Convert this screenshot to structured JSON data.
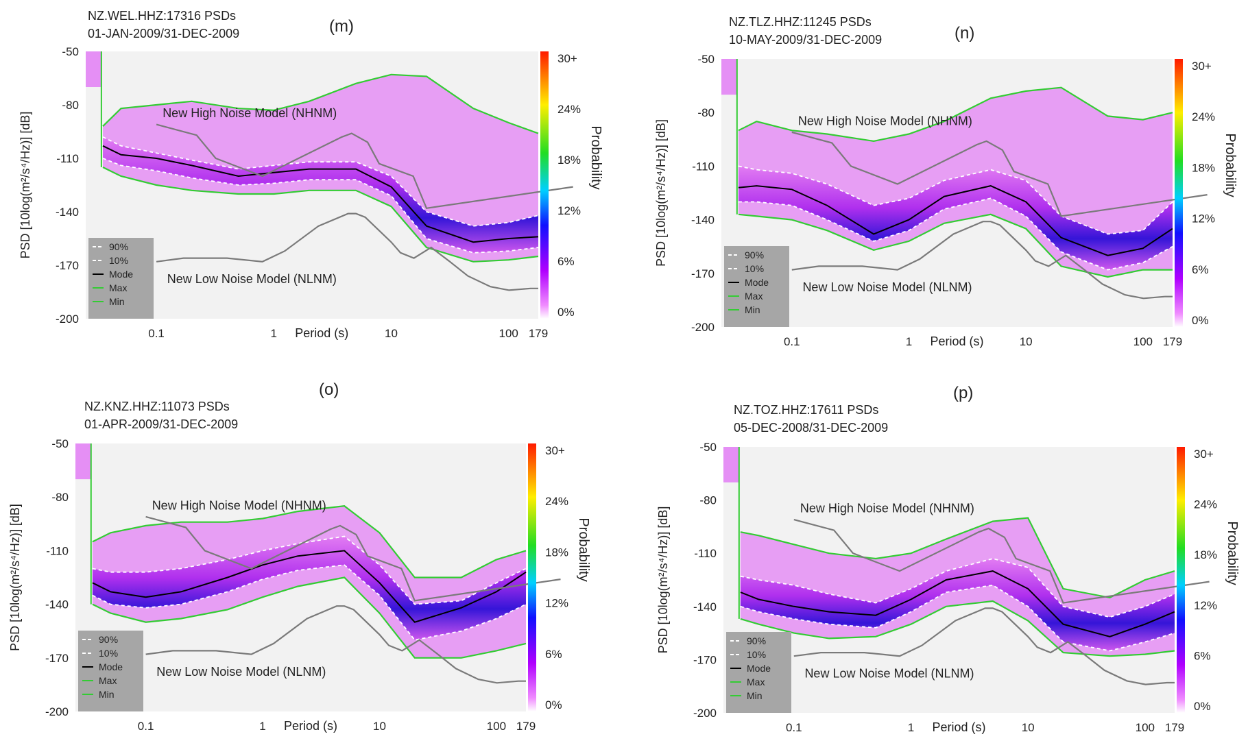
{
  "figure": {
    "colorbar": {
      "ticks": [
        "30+",
        "24%",
        "18%",
        "12%",
        "6%",
        "0%"
      ],
      "label": "Probability"
    },
    "axis": {
      "ylabel": "PSD [10log(m²/s⁴/Hz)] [dB]",
      "xlabel": "Period (s)"
    },
    "model_labels": {
      "nhnm": "New High Noise Model (NHNM)",
      "nlnm": "New Low Noise Model (NLNM)"
    },
    "legend": [
      "90%",
      "10%",
      "Mode",
      "Max",
      "Min"
    ]
  },
  "chart_data": [
    {
      "type": "heatmap",
      "letter": "(m)",
      "station": "NZ.WEL.HHZ:17316 PSDs",
      "dates": "01-JAN-2009/31-DEC-2009",
      "xscale": "log",
      "xlim": [
        0.025,
        179
      ],
      "ylim": [
        -200,
        -50
      ],
      "yticks": [
        -50,
        -80,
        -110,
        -140,
        -170,
        -200
      ],
      "xticks": [
        {
          "v": 0.1,
          "t": "0.1"
        },
        {
          "v": 1,
          "t": "1"
        },
        {
          "v": 10,
          "t": "10"
        },
        {
          "v": 100,
          "t": "100"
        },
        {
          "v": 179,
          "t": "179"
        }
      ],
      "series": {
        "max": {
          "x": [
            0.035,
            0.05,
            0.1,
            0.2,
            0.5,
            1,
            2,
            5,
            10,
            20,
            50,
            100,
            179
          ],
          "y": [
            -92,
            -82,
            -80,
            -78,
            -82,
            -83,
            -78,
            -68,
            -63,
            -64,
            -82,
            -90,
            -96
          ]
        },
        "p90": {
          "x": [
            0.035,
            0.05,
            0.1,
            0.2,
            0.5,
            1,
            2,
            5,
            10,
            20,
            50,
            100,
            179
          ],
          "y": [
            -98,
            -103,
            -107,
            -111,
            -116,
            -114,
            -112,
            -112,
            -120,
            -140,
            -148,
            -146,
            -142
          ]
        },
        "mode": {
          "x": [
            0.035,
            0.05,
            0.1,
            0.2,
            0.5,
            1,
            2,
            5,
            10,
            20,
            50,
            100,
            179
          ],
          "y": [
            -103,
            -108,
            -110,
            -114,
            -120,
            -118,
            -116,
            -116,
            -126,
            -148,
            -157,
            -155,
            -154
          ]
        },
        "p10": {
          "x": [
            0.035,
            0.05,
            0.1,
            0.2,
            0.5,
            1,
            2,
            5,
            10,
            20,
            50,
            100,
            179
          ],
          "y": [
            -110,
            -114,
            -117,
            -121,
            -125,
            -124,
            -122,
            -122,
            -131,
            -155,
            -163,
            -162,
            -160
          ]
        },
        "min": {
          "x": [
            0.035,
            0.05,
            0.1,
            0.2,
            0.5,
            1,
            2,
            5,
            10,
            20,
            50,
            100,
            179
          ],
          "y": [
            -115,
            -120,
            -125,
            -128,
            -130,
            -130,
            -128,
            -128,
            -137,
            -160,
            -168,
            -167,
            -165
          ]
        }
      }
    },
    {
      "type": "heatmap",
      "letter": "(n)",
      "station": "NZ.TLZ.HHZ:11245 PSDs",
      "dates": "10-MAY-2009/31-DEC-2009",
      "xscale": "log",
      "xlim": [
        0.025,
        179
      ],
      "ylim": [
        -200,
        -50
      ],
      "yticks": [
        -50,
        -80,
        -110,
        -140,
        -170,
        -200
      ],
      "xticks": [
        {
          "v": 0.1,
          "t": "0.1"
        },
        {
          "v": 1,
          "t": "1"
        },
        {
          "v": 10,
          "t": "10"
        },
        {
          "v": 100,
          "t": "100"
        },
        {
          "v": 179,
          "t": "179"
        }
      ],
      "series": {
        "max": {
          "x": [
            0.035,
            0.05,
            0.1,
            0.2,
            0.5,
            1,
            2,
            5,
            10,
            20,
            50,
            100,
            179
          ],
          "y": [
            -90,
            -85,
            -90,
            -92,
            -96,
            -92,
            -85,
            -72,
            -68,
            -66,
            -82,
            -84,
            -80
          ]
        },
        "p90": {
          "x": [
            0.035,
            0.05,
            0.1,
            0.2,
            0.5,
            1,
            2,
            5,
            10,
            20,
            50,
            100,
            179
          ],
          "y": [
            -110,
            -112,
            -114,
            -120,
            -132,
            -128,
            -118,
            -112,
            -118,
            -138,
            -148,
            -146,
            -130
          ]
        },
        "mode": {
          "x": [
            0.035,
            0.05,
            0.1,
            0.2,
            0.5,
            1,
            2,
            5,
            10,
            20,
            50,
            100,
            179
          ],
          "y": [
            -122,
            -121,
            -123,
            -132,
            -148,
            -140,
            -127,
            -121,
            -130,
            -150,
            -160,
            -156,
            -145
          ]
        },
        "p10": {
          "x": [
            0.035,
            0.05,
            0.1,
            0.2,
            0.5,
            1,
            2,
            5,
            10,
            20,
            50,
            100,
            179
          ],
          "y": [
            -130,
            -130,
            -132,
            -140,
            -152,
            -146,
            -134,
            -128,
            -138,
            -158,
            -168,
            -164,
            -155
          ]
        },
        "min": {
          "x": [
            0.035,
            0.05,
            0.1,
            0.2,
            0.5,
            1,
            2,
            5,
            10,
            20,
            50,
            100,
            179
          ],
          "y": [
            -137,
            -138,
            -140,
            -146,
            -157,
            -152,
            -142,
            -137,
            -145,
            -166,
            -172,
            -168,
            -168
          ]
        }
      }
    },
    {
      "type": "heatmap",
      "letter": "(o)",
      "station": "NZ.KNZ.HHZ:11073 PSDs",
      "dates": "01-APR-2009/31-DEC-2009",
      "xscale": "log",
      "xlim": [
        0.025,
        179
      ],
      "ylim": [
        -200,
        -50
      ],
      "yticks": [
        -50,
        -80,
        -110,
        -140,
        -170,
        -200
      ],
      "xticks": [
        {
          "v": 0.1,
          "t": "0.1"
        },
        {
          "v": 1,
          "t": "1"
        },
        {
          "v": 10,
          "t": "10"
        },
        {
          "v": 100,
          "t": "100"
        },
        {
          "v": 179,
          "t": "179"
        }
      ],
      "series": {
        "max": {
          "x": [
            0.035,
            0.05,
            0.1,
            0.2,
            0.5,
            1,
            2,
            5,
            10,
            20,
            50,
            100,
            179
          ],
          "y": [
            -105,
            -100,
            -96,
            -94,
            -94,
            -92,
            -88,
            -85,
            -100,
            -125,
            -125,
            -115,
            -110
          ]
        },
        "p90": {
          "x": [
            0.035,
            0.05,
            0.1,
            0.2,
            0.5,
            1,
            2,
            5,
            10,
            20,
            50,
            100,
            179
          ],
          "y": [
            -120,
            -122,
            -122,
            -120,
            -115,
            -110,
            -106,
            -102,
            -118,
            -140,
            -138,
            -128,
            -120
          ]
        },
        "mode": {
          "x": [
            0.035,
            0.05,
            0.1,
            0.2,
            0.5,
            1,
            2,
            5,
            10,
            20,
            50,
            100,
            179
          ],
          "y": [
            -128,
            -133,
            -136,
            -133,
            -125,
            -118,
            -113,
            -110,
            -128,
            -150,
            -142,
            -133,
            -122
          ]
        },
        "p10": {
          "x": [
            0.035,
            0.05,
            0.1,
            0.2,
            0.5,
            1,
            2,
            5,
            10,
            20,
            50,
            100,
            179
          ],
          "y": [
            -135,
            -140,
            -142,
            -140,
            -133,
            -126,
            -121,
            -118,
            -135,
            -160,
            -155,
            -148,
            -140
          ]
        },
        "min": {
          "x": [
            0.035,
            0.05,
            0.1,
            0.2,
            0.5,
            1,
            2,
            5,
            10,
            20,
            50,
            100,
            179
          ],
          "y": [
            -140,
            -145,
            -150,
            -148,
            -143,
            -136,
            -130,
            -125,
            -145,
            -170,
            -170,
            -166,
            -162
          ]
        }
      }
    },
    {
      "type": "heatmap",
      "letter": "(p)",
      "station": "NZ.TOZ.HHZ:17611 PSDs",
      "dates": "05-DEC-2008/31-DEC-2009",
      "xscale": "log",
      "xlim": [
        0.025,
        179
      ],
      "ylim": [
        -200,
        -50
      ],
      "yticks": [
        -50,
        -80,
        -110,
        -140,
        -170,
        -200
      ],
      "xticks": [
        {
          "v": 0.1,
          "t": "0.1"
        },
        {
          "v": 1,
          "t": "1"
        },
        {
          "v": 10,
          "t": "10"
        },
        {
          "v": 100,
          "t": "100"
        },
        {
          "v": 179,
          "t": "179"
        }
      ],
      "series": {
        "max": {
          "x": [
            0.035,
            0.05,
            0.1,
            0.2,
            0.5,
            1,
            2,
            5,
            10,
            20,
            50,
            100,
            179
          ],
          "y": [
            -98,
            -100,
            -105,
            -110,
            -113,
            -110,
            -102,
            -92,
            -90,
            -130,
            -135,
            -125,
            -120
          ]
        },
        "p90": {
          "x": [
            0.035,
            0.05,
            0.1,
            0.2,
            0.5,
            1,
            2,
            5,
            10,
            20,
            50,
            100,
            179
          ],
          "y": [
            -123,
            -125,
            -128,
            -133,
            -138,
            -130,
            -120,
            -113,
            -118,
            -140,
            -146,
            -140,
            -133
          ]
        },
        "mode": {
          "x": [
            0.035,
            0.05,
            0.1,
            0.2,
            0.5,
            1,
            2,
            5,
            10,
            20,
            50,
            100,
            179
          ],
          "y": [
            -132,
            -136,
            -140,
            -143,
            -145,
            -136,
            -125,
            -120,
            -130,
            -150,
            -157,
            -150,
            -143
          ]
        },
        "p10": {
          "x": [
            0.035,
            0.05,
            0.1,
            0.2,
            0.5,
            1,
            2,
            5,
            10,
            20,
            50,
            100,
            179
          ],
          "y": [
            -140,
            -143,
            -147,
            -150,
            -152,
            -143,
            -132,
            -128,
            -140,
            -160,
            -165,
            -160,
            -155
          ]
        },
        "min": {
          "x": [
            0.035,
            0.05,
            0.1,
            0.2,
            0.5,
            1,
            2,
            5,
            10,
            20,
            50,
            100,
            179
          ],
          "y": [
            -147,
            -150,
            -155,
            -158,
            -157,
            -150,
            -140,
            -137,
            -148,
            -166,
            -168,
            -167,
            -165
          ]
        }
      }
    }
  ],
  "reference_models": {
    "nhnm": {
      "x": [
        0.1,
        0.22,
        0.32,
        0.8,
        3.8,
        4.6,
        6.3,
        7.9,
        15.4,
        20,
        354
      ],
      "y": [
        -91,
        -97,
        -110,
        -120,
        -98,
        -96,
        -101,
        -113,
        -120,
        -138,
        -126
      ]
    },
    "nlnm": {
      "x": [
        0.1,
        0.17,
        0.4,
        0.8,
        1.24,
        2.4,
        4.3,
        5,
        6,
        10,
        12,
        15.6,
        21.9,
        31.6,
        45,
        70,
        101,
        154,
        179
      ],
      "y": [
        -168,
        -166,
        -166,
        -168,
        -162,
        -148,
        -141,
        -141,
        -143,
        -157,
        -163,
        -166,
        -160,
        -168,
        -176,
        -182,
        -184,
        -183,
        -183
      ]
    }
  }
}
